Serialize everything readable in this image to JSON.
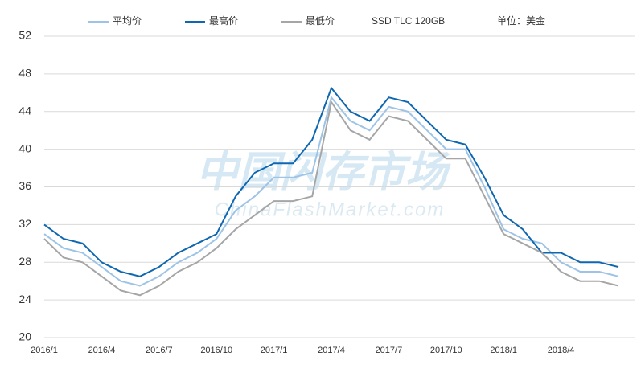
{
  "chart_data": {
    "type": "line",
    "legend_note": "SSD TLC 120GB",
    "unit_note": "单位：美金",
    "watermark": "中国闪存市场",
    "watermark_sub": "ChinaFlashMarket.com",
    "categories": [
      "2016/1",
      null,
      null,
      "2016/4",
      null,
      null,
      "2016/7",
      null,
      null,
      "2016/10",
      null,
      null,
      "2017/1",
      null,
      null,
      "2017/4",
      null,
      null,
      "2017/7",
      null,
      null,
      "2017/10",
      null,
      null,
      "2018/1",
      null,
      null,
      "2018/4",
      null,
      null,
      null
    ],
    "series": [
      {
        "name": "平均价",
        "color": "#9dc3e6",
        "values": [
          31,
          29.5,
          29,
          27.5,
          26,
          25.5,
          26.5,
          28,
          29,
          30.5,
          33.5,
          35,
          37,
          37,
          37.5,
          45.5,
          43,
          42,
          44.5,
          44,
          42,
          40,
          40,
          36,
          31.5,
          30.5,
          30,
          28,
          27,
          27,
          26.5
        ]
      },
      {
        "name": "最高价",
        "color": "#0f67b1",
        "values": [
          32,
          30.5,
          30,
          28,
          27,
          26.5,
          27.5,
          29,
          30,
          31,
          35,
          37.5,
          38.5,
          38.5,
          41,
          46.5,
          44,
          43,
          45.5,
          45,
          43,
          41,
          40.5,
          37,
          33,
          31.5,
          29,
          29,
          28,
          28,
          27.5
        ]
      },
      {
        "name": "最低价",
        "color": "#a6a6a6",
        "values": [
          30.5,
          28.5,
          28,
          26.5,
          25,
          24.5,
          25.5,
          27,
          28,
          29.5,
          31.5,
          33,
          34.5,
          34.5,
          35,
          45,
          42,
          41,
          43.5,
          43,
          41,
          39,
          39,
          35,
          31,
          30,
          29,
          27,
          26,
          26,
          25.5
        ]
      }
    ],
    "ylim": [
      20,
      52
    ],
    "yticks": [
      20,
      24,
      28,
      32,
      36,
      40,
      44,
      48,
      52
    ],
    "grid": true
  }
}
